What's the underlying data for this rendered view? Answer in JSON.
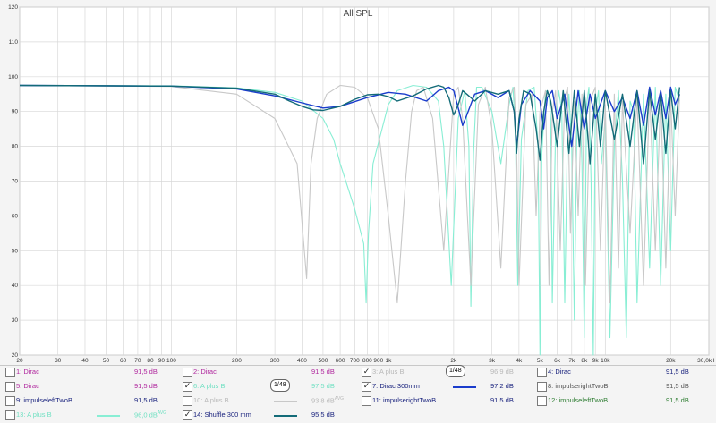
{
  "chart_data": {
    "type": "line",
    "title": "All SPL",
    "xlabel": "",
    "ylabel": "",
    "x_scale": "log",
    "xlim": [
      20,
      30000
    ],
    "ylim": [
      20,
      120
    ],
    "grid": true,
    "y_ticks": [
      20,
      30,
      40,
      50,
      60,
      70,
      80,
      90,
      100,
      110,
      120
    ],
    "x_ticks": [
      {
        "v": 20,
        "t": "20"
      },
      {
        "v": 30,
        "t": "30"
      },
      {
        "v": 40,
        "t": "40"
      },
      {
        "v": 50,
        "t": "50"
      },
      {
        "v": 60,
        "t": "60"
      },
      {
        "v": 70,
        "t": "70"
      },
      {
        "v": 80,
        "t": "80"
      },
      {
        "v": 90,
        "t": "90"
      },
      {
        "v": 100,
        "t": "100"
      },
      {
        "v": 200,
        "t": "200"
      },
      {
        "v": 300,
        "t": "300"
      },
      {
        "v": 400,
        "t": "400"
      },
      {
        "v": 500,
        "t": "500"
      },
      {
        "v": 600,
        "t": "600"
      },
      {
        "v": 700,
        "t": "700"
      },
      {
        "v": 800,
        "t": "800"
      },
      {
        "v": 900,
        "t": "900"
      },
      {
        "v": 1000,
        "t": "1k"
      },
      {
        "v": 2000,
        "t": "2k"
      },
      {
        "v": 3000,
        "t": "3k"
      },
      {
        "v": 4000,
        "t": "4k"
      },
      {
        "v": 5000,
        "t": "5k"
      },
      {
        "v": 6000,
        "t": "6k"
      },
      {
        "v": 7000,
        "t": "7k"
      },
      {
        "v": 8000,
        "t": "8k"
      },
      {
        "v": 9000,
        "t": "9k"
      },
      {
        "v": 10000,
        "t": "10k"
      },
      {
        "v": 20000,
        "t": "20k"
      },
      {
        "v": 30000,
        "t": "30,0k Hz"
      }
    ],
    "series": [
      {
        "name": "13: A plus B",
        "color": "#88eed4",
        "x": [
          20,
          100,
          200,
          300,
          400,
          500,
          560,
          600,
          700,
          770,
          790,
          810,
          850,
          1000,
          1100,
          1300,
          1500,
          1700,
          1800,
          1950,
          2100,
          2250,
          2350,
          2400,
          2470,
          2550,
          2700,
          3000,
          3300,
          3600,
          3750,
          3850,
          3950,
          4100,
          4400,
          4700,
          4900,
          5000,
          5100,
          5300,
          5500,
          5600,
          5700,
          5900,
          6100,
          6300,
          6500,
          6700,
          6800,
          7000,
          7200,
          7400,
          7600,
          7800,
          8000,
          8200,
          8400,
          8600,
          8800,
          9000,
          9300,
          9600,
          10000,
          10500,
          11000,
          11500,
          12000,
          12500,
          13000,
          13500,
          14000,
          15000,
          16000,
          17000,
          18000,
          19000,
          20000,
          21000,
          22000
        ],
        "y": [
          97.5,
          97.4,
          96.8,
          95.5,
          93,
          88,
          82,
          75,
          62,
          52,
          35,
          55,
          75,
          92,
          96,
          97.5,
          97,
          93,
          80,
          40,
          88,
          96,
          80,
          34,
          78,
          97,
          97,
          90,
          75,
          92,
          97,
          85,
          40,
          82,
          96,
          97,
          80,
          20,
          78,
          96,
          95,
          88,
          35,
          85,
          96,
          90,
          35,
          86,
          95,
          80,
          30,
          85,
          96,
          75,
          25,
          92,
          97,
          70,
          20,
          90,
          96,
          75,
          88,
          25,
          80,
          96,
          70,
          25,
          93,
          90,
          35,
          95,
          45,
          97,
          40,
          95,
          50,
          97,
          93
        ]
      },
      {
        "name": "10: A plus B",
        "color": "#c8c8c8",
        "x": [
          20,
          100,
          200,
          300,
          380,
          420,
          440,
          470,
          520,
          600,
          700,
          800,
          900,
          1000,
          1100,
          1200,
          1280,
          1350,
          1450,
          1600,
          1800,
          2000,
          2100,
          2200,
          2400,
          2600,
          2800,
          3000,
          3300,
          3600,
          3800,
          3900,
          4000,
          4300,
          4600,
          4800,
          5000,
          5300,
          5500,
          5700,
          5900,
          6200,
          6500,
          6700,
          6900,
          7200,
          7500,
          7800,
          8100,
          8500,
          9000,
          9500,
          10000,
          10500,
          11000,
          11500,
          12000,
          13000,
          14000,
          15000,
          16000,
          17000,
          18000,
          19000,
          20000,
          21000,
          22000
        ],
        "y": [
          97.5,
          97.2,
          95,
          88,
          75,
          42,
          75,
          88,
          95,
          97.5,
          97,
          94,
          85,
          60,
          35,
          70,
          90,
          96,
          97,
          88,
          50,
          95,
          97,
          88,
          40,
          92,
          97,
          85,
          45,
          94,
          97,
          80,
          40,
          92,
          95,
          60,
          90,
          96,
          40,
          90,
          96,
          50,
          94,
          97,
          55,
          93,
          60,
          95,
          40,
          93,
          97,
          50,
          92,
          35,
          95,
          45,
          93,
          55,
          94,
          40,
          96,
          50,
          95,
          45,
          94,
          60,
          95
        ]
      },
      {
        "name": "7: Dirac 300mm",
        "color": "#1a3ccc",
        "x": [
          20,
          100,
          200,
          300,
          400,
          500,
          600,
          800,
          1000,
          1200,
          1500,
          1700,
          1900,
          2000,
          2100,
          2200,
          2300,
          2500,
          2800,
          3200,
          3600,
          3800,
          3900,
          4100,
          4500,
          5000,
          5200,
          5400,
          5700,
          6000,
          6500,
          7000,
          7500,
          8000,
          8500,
          9000,
          10000,
          11000,
          12000,
          13000,
          14000,
          15000,
          16000,
          17000,
          18000,
          19000,
          20000,
          21000,
          22000
        ],
        "y": [
          97.5,
          97.3,
          96.5,
          94.5,
          92.5,
          91,
          91.5,
          94,
          95.5,
          95,
          93,
          96,
          97,
          96,
          91,
          86,
          89,
          95,
          96,
          94,
          96,
          90,
          80,
          92,
          96,
          93,
          85,
          94,
          96,
          88,
          95,
          80,
          96,
          85,
          95,
          88,
          96,
          90,
          94,
          88,
          96,
          86,
          97,
          89,
          96,
          88,
          97,
          92,
          95
        ]
      },
      {
        "name": "14: Shuffle 300 mm",
        "color": "#136b78",
        "x": [
          20,
          100,
          200,
          300,
          350,
          400,
          450,
          500,
          600,
          700,
          800,
          900,
          1000,
          1100,
          1300,
          1500,
          1700,
          1800,
          1900,
          2000,
          2100,
          2200,
          2300,
          2500,
          2800,
          3200,
          3600,
          3800,
          3900,
          4000,
          4200,
          4500,
          4800,
          5000,
          5200,
          5400,
          5600,
          6000,
          6400,
          6800,
          7200,
          7600,
          8000,
          8500,
          9000,
          9500,
          10000,
          11000,
          12000,
          13000,
          14000,
          15000,
          16000,
          17000,
          18000,
          19000,
          20000,
          21000,
          22000
        ],
        "y": [
          97.5,
          97.3,
          96.7,
          95,
          93,
          91.5,
          90.5,
          90.3,
          91.5,
          93.5,
          94.8,
          95,
          94.3,
          93,
          94.5,
          96.5,
          97.5,
          97,
          94,
          89,
          92,
          96,
          95,
          93,
          96,
          95,
          96,
          90,
          78,
          88,
          96,
          95,
          85,
          76,
          90,
          96,
          93,
          80,
          96,
          78,
          96,
          80,
          96,
          75,
          95,
          80,
          96,
          82,
          95,
          80,
          96,
          75,
          96,
          82,
          95,
          78,
          96,
          85,
          97
        ]
      }
    ]
  },
  "legend": {
    "avg_suffix": "AVG",
    "scale_label": "1/48",
    "rows": [
      [
        {
          "checked": "",
          "label": "1: Dirac",
          "value": "91,5 dB",
          "color": "#b0279e",
          "line": "",
          "avg": false
        },
        {
          "checked": "",
          "label": "2: Dirac",
          "value": "91,5 dB",
          "color": "#b0279e",
          "line": "",
          "avg": false
        },
        {
          "checked": "✓",
          "label": "3: A plus B",
          "value": "96,9 dB",
          "color": "#b8b8b8",
          "line": "",
          "avg": false,
          "scale": true
        },
        {
          "checked": "",
          "label": "4: Dirac",
          "value": "91,5 dB",
          "color": "#1a237e",
          "line": "",
          "avg": false
        }
      ],
      [
        {
          "checked": "",
          "label": "5: Dirac",
          "value": "91,5 dB",
          "color": "#b0279e",
          "line": "",
          "avg": false
        },
        {
          "checked": "✓",
          "label": "6: A plus B",
          "value": "97,5 dB",
          "color": "#6fe0c2",
          "line": "",
          "avg": false,
          "scale": true
        },
        {
          "checked": "✓",
          "label": "7: Dirac 300mm",
          "value": "97,2 dB",
          "color": "#1a237e",
          "line": "#1a3ccc",
          "avg": false
        },
        {
          "checked": "",
          "label": "8: impulserightTwoB",
          "value": "91,5 dB",
          "color": "#555555",
          "line": "",
          "avg": false
        }
      ],
      [
        {
          "checked": "",
          "label": "9: impulseleftTwoB",
          "value": "91,5 dB",
          "color": "#1a237e",
          "line": "",
          "avg": false
        },
        {
          "checked": "",
          "label": "10: A plus B",
          "value": "93,8 dB",
          "color": "#b8b8b8",
          "line": "#c8c8c8",
          "avg": true
        },
        {
          "checked": "",
          "label": "11: impulserightTwoB",
          "value": "91,5 dB",
          "color": "#1a237e",
          "line": "",
          "avg": false
        },
        {
          "checked": "",
          "label": "12: impulseleftTwoB",
          "value": "91,5 dB",
          "color": "#2e7d32",
          "line": "",
          "avg": false
        }
      ],
      [
        {
          "checked": "",
          "label": "13: A plus B",
          "value": "96,0 dB",
          "color": "#6fe0c2",
          "line": "#88eed4",
          "avg": true
        },
        {
          "checked": "✓",
          "label": "14: Shuffle 300 mm",
          "value": "95,5 dB",
          "color": "#1a237e",
          "line": "#136b78",
          "avg": false
        },
        null,
        null
      ]
    ]
  }
}
